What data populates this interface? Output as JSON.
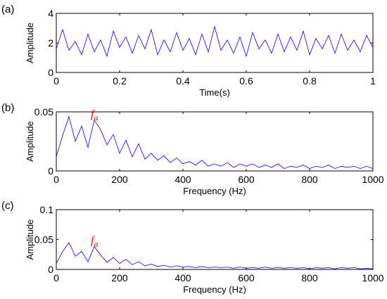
{
  "chart_data": [
    {
      "type": "line",
      "panel_label": "(a)",
      "title": "",
      "xlabel": "Time(s)",
      "ylabel": "Amplitude",
      "xlim": [
        0,
        1
      ],
      "ylim": [
        0,
        4
      ],
      "xticks": [
        "0",
        "0.2",
        "0.4",
        "0.6",
        "0.8",
        "1"
      ],
      "yticks": [
        "0",
        "2",
        "4"
      ],
      "series": [
        {
          "color": "#0000ff",
          "x": [
            0,
            0.02,
            0.04,
            0.06,
            0.08,
            0.1,
            0.12,
            0.14,
            0.16,
            0.18,
            0.2,
            0.22,
            0.24,
            0.26,
            0.28,
            0.3,
            0.32,
            0.34,
            0.36,
            0.38,
            0.4,
            0.42,
            0.44,
            0.46,
            0.48,
            0.5,
            0.52,
            0.54,
            0.56,
            0.58,
            0.6,
            0.62,
            0.64,
            0.66,
            0.68,
            0.7,
            0.72,
            0.74,
            0.76,
            0.78,
            0.8,
            0.82,
            0.84,
            0.86,
            0.88,
            0.9,
            0.92,
            0.94,
            0.96,
            0.98,
            1
          ],
          "y": [
            1.6,
            2.9,
            1.5,
            2.1,
            1.2,
            2.6,
            1.4,
            2.2,
            1.1,
            2.8,
            1.7,
            2.4,
            1.3,
            2.5,
            1.6,
            2.9,
            1.2,
            2.2,
            1.4,
            2.7,
            1.5,
            2.3,
            1.2,
            2.6,
            1.4,
            3.1,
            1.5,
            2.2,
            1.3,
            2.4,
            1.1,
            2.7,
            1.6,
            2.2,
            1.3,
            2.6,
            1.4,
            2.4,
            1.5,
            2.8,
            1.2,
            2.3,
            1.6,
            2.5,
            1.3,
            2.6,
            1.5,
            2.2,
            1.4,
            2.5,
            1.7
          ]
        }
      ],
      "grid": false,
      "annotations": []
    },
    {
      "type": "line",
      "panel_label": "(b)",
      "title": "",
      "xlabel": "Frequency (Hz)",
      "ylabel": "Amplitude",
      "xlim": [
        0,
        1000
      ],
      "ylim": [
        0,
        0.05
      ],
      "xticks": [
        "0",
        "200",
        "400",
        "600",
        "800",
        "1000"
      ],
      "yticks": [
        "0",
        "0.05"
      ],
      "series": [
        {
          "color": "#0000ff",
          "x": [
            0,
            20,
            40,
            60,
            80,
            100,
            120,
            140,
            160,
            180,
            200,
            220,
            240,
            260,
            280,
            300,
            320,
            340,
            360,
            380,
            400,
            420,
            440,
            460,
            480,
            500,
            520,
            540,
            560,
            580,
            600,
            620,
            640,
            660,
            680,
            700,
            720,
            740,
            760,
            780,
            800,
            820,
            840,
            860,
            880,
            900,
            920,
            940,
            960,
            980,
            1000
          ],
          "y": [
            0.012,
            0.03,
            0.046,
            0.025,
            0.038,
            0.02,
            0.043,
            0.035,
            0.022,
            0.031,
            0.015,
            0.026,
            0.012,
            0.023,
            0.01,
            0.015,
            0.009,
            0.013,
            0.007,
            0.011,
            0.006,
            0.008,
            0.005,
            0.009,
            0.004,
            0.006,
            0.004,
            0.007,
            0.003,
            0.006,
            0.004,
            0.006,
            0.003,
            0.005,
            0.003,
            0.006,
            0.002,
            0.004,
            0.003,
            0.005,
            0.002,
            0.004,
            0.003,
            0.005,
            0.002,
            0.004,
            0.003,
            0.004,
            0.002,
            0.004,
            0.002
          ]
        }
      ],
      "grid": false,
      "annotations": [
        {
          "text": "f",
          "subscript": "a",
          "x": 100,
          "y": 0.043,
          "color": "#ff0000"
        }
      ]
    },
    {
      "type": "line",
      "panel_label": "(c)",
      "title": "",
      "xlabel": "Frequency (Hz)",
      "ylabel": "Amplitude",
      "xlim": [
        0,
        1000
      ],
      "ylim": [
        0,
        0.1
      ],
      "xticks": [
        "0",
        "200",
        "400",
        "600",
        "800",
        "1000"
      ],
      "yticks": [
        "0",
        "0.05",
        "0.1"
      ],
      "series": [
        {
          "color": "#0000ff",
          "x": [
            0,
            20,
            40,
            60,
            80,
            100,
            120,
            140,
            160,
            180,
            200,
            220,
            240,
            260,
            280,
            300,
            320,
            340,
            360,
            380,
            400,
            420,
            440,
            460,
            480,
            500,
            520,
            540,
            560,
            580,
            600,
            620,
            640,
            660,
            680,
            700,
            720,
            740,
            760,
            780,
            800,
            820,
            840,
            860,
            880,
            900,
            920,
            940,
            960,
            980,
            1000
          ],
          "y": [
            0.01,
            0.03,
            0.045,
            0.022,
            0.03,
            0.013,
            0.038,
            0.024,
            0.012,
            0.02,
            0.01,
            0.017,
            0.008,
            0.013,
            0.006,
            0.009,
            0.005,
            0.007,
            0.004,
            0.006,
            0.004,
            0.005,
            0.003,
            0.005,
            0.003,
            0.004,
            0.003,
            0.004,
            0.002,
            0.004,
            0.002,
            0.003,
            0.002,
            0.004,
            0.002,
            0.003,
            0.002,
            0.003,
            0.002,
            0.003,
            0.001,
            0.003,
            0.002,
            0.003,
            0.001,
            0.003,
            0.002,
            0.003,
            0.001,
            0.002,
            0.001
          ]
        }
      ],
      "grid": false,
      "annotations": [
        {
          "text": "f",
          "subscript": "a",
          "x": 100,
          "y": 0.038,
          "color": "#ff0000"
        }
      ]
    }
  ]
}
